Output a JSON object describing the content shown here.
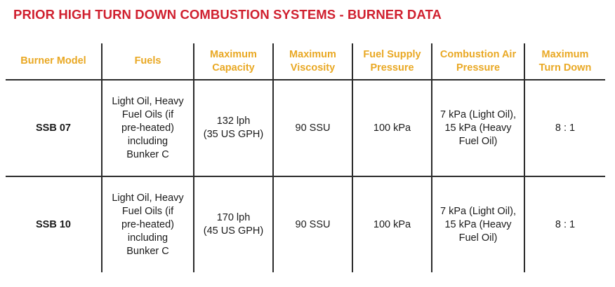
{
  "title": "PRIOR HIGH TURN DOWN COMBUSTION SYSTEMS - BURNER DATA",
  "colors": {
    "title": "#d0202f",
    "header_text": "#e9a823",
    "rule": "#2b2b2b"
  },
  "table": {
    "headers": [
      "Burner Model",
      "Fuels",
      "Maximum\nCapacity",
      "Maximum\nViscosity",
      "Fuel Supply\nPressure",
      "Combustion Air\nPressure",
      "Maximum\nTurn Down"
    ],
    "rows": [
      {
        "model": "SSB 07",
        "fuels": "Light Oil, Heavy\nFuel Oils (if\npre-heated)\nincluding\nBunker C",
        "capacity": "132 lph\n(35 US GPH)",
        "viscosity": "90 SSU",
        "supply_pressure": "100 kPa",
        "air_pressure": "7 kPa (Light Oil),\n15 kPa (Heavy\nFuel Oil)",
        "turn_down": "8 : 1"
      },
      {
        "model": "SSB 10",
        "fuels": "Light Oil, Heavy\nFuel Oils (if\npre-heated)\nincluding\nBunker C",
        "capacity": "170 lph\n(45 US GPH)",
        "viscosity": "90 SSU",
        "supply_pressure": "100 kPa",
        "air_pressure": "7 kPa (Light Oil),\n15 kPa (Heavy\nFuel Oil)",
        "turn_down": "8 : 1"
      }
    ]
  }
}
